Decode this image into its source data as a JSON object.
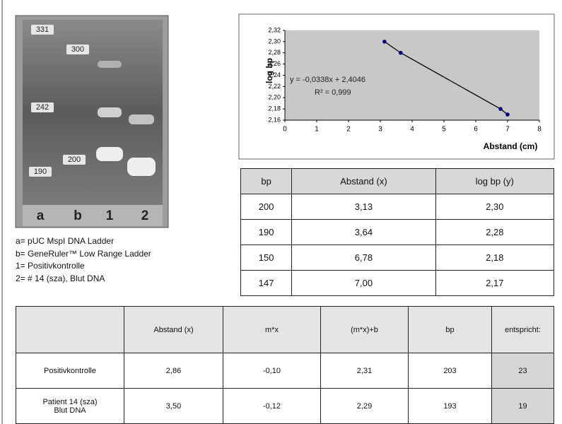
{
  "gel": {
    "band_labels": [
      "331",
      "300",
      "242",
      "200",
      "190"
    ],
    "lane_labels": [
      "a",
      "b",
      "1",
      "2"
    ]
  },
  "legend": [
    "a= pUC MspI DNA Ladder",
    "b= GeneRuler™ Low Range Ladder",
    "1= Positivkontrolle",
    "2= # 14 (sza), Blut DNA"
  ],
  "chart_data": {
    "type": "scatter",
    "x_label": "Abstand (cm)",
    "y_label": "log bp",
    "annotations": [
      "y = -0,0338x + 2,4046",
      "R² = 0,999"
    ],
    "x": [
      3.13,
      3.64,
      6.78,
      7.0
    ],
    "values": [
      2.3,
      2.28,
      2.18,
      2.17
    ],
    "color": "#000080",
    "xlim": [
      0,
      8
    ],
    "xticks": [
      0,
      1,
      2,
      3,
      4,
      5,
      6,
      7,
      8
    ],
    "ylim": [
      2.16,
      2.32
    ],
    "yticks": [
      {
        "value": 2.16,
        "label": "2,16"
      },
      {
        "value": 2.18,
        "label": "2,18"
      },
      {
        "value": 2.2,
        "label": "2,20"
      },
      {
        "value": 2.22,
        "label": "2,22"
      },
      {
        "value": 2.24,
        "label": "2,24"
      },
      {
        "value": 2.26,
        "label": "2,26"
      },
      {
        "value": 2.28,
        "label": "2,28"
      },
      {
        "value": 2.3,
        "label": "2,30"
      },
      {
        "value": 2.32,
        "label": "2,32"
      }
    ],
    "grid": false,
    "trendline": true
  },
  "table1": {
    "header": [
      "bp",
      "Abstand (x)",
      "log bp (y)"
    ],
    "rows": [
      [
        "200",
        "3,13",
        "2,30"
      ],
      [
        "190",
        "3,64",
        "2,28"
      ],
      [
        "150",
        "6,78",
        "2,18"
      ],
      [
        "147",
        "7,00",
        "2,17"
      ]
    ]
  },
  "table2": {
    "header": [
      "Abstand (x)",
      "m*x",
      "(m*x)+b",
      "bp",
      "entspricht:"
    ],
    "rows": [
      {
        "label": [
          "Positivkontrolle"
        ],
        "cells": [
          "2,86",
          "-0,10",
          "2,31",
          "203",
          "23"
        ]
      },
      {
        "label": [
          "Patient 14 (sza)",
          "Blut DNA"
        ],
        "cells": [
          "3,50",
          "-0,12",
          "2,29",
          "193",
          "19"
        ]
      }
    ]
  }
}
